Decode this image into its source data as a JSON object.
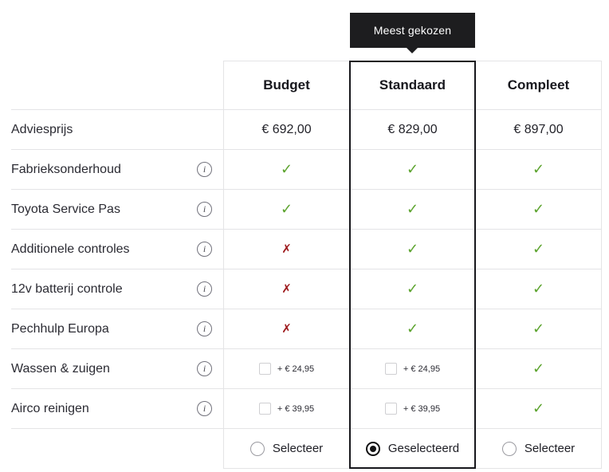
{
  "badge": {
    "label": "Meest gekozen"
  },
  "header": {
    "columns": [
      "Budget",
      "Standaard",
      "Compleet"
    ]
  },
  "icons": {
    "info": "i"
  },
  "colors": {
    "check": "#5ba32d",
    "cross": "#9e1b1e",
    "badge_bg": "#1d1d1f",
    "highlight_border": "#17171c"
  },
  "rows": {
    "price": {
      "label": "Adviesprijs",
      "values": [
        "€ 692,00",
        "€ 829,00",
        "€ 897,00"
      ]
    },
    "features": [
      {
        "label": "Fabrieksonderhoud",
        "cells": [
          {
            "glyph": "✓",
            "type": "check"
          },
          {
            "glyph": "✓",
            "type": "check"
          },
          {
            "glyph": "✓",
            "type": "check"
          }
        ]
      },
      {
        "label": "Toyota Service Pas",
        "cells": [
          {
            "glyph": "✓",
            "type": "check"
          },
          {
            "glyph": "✓",
            "type": "check"
          },
          {
            "glyph": "✓",
            "type": "check"
          }
        ]
      },
      {
        "label": "Additionele controles",
        "cells": [
          {
            "glyph": "✗",
            "type": "cross"
          },
          {
            "glyph": "✓",
            "type": "check"
          },
          {
            "glyph": "✓",
            "type": "check"
          }
        ]
      },
      {
        "label": "12v batterij controle",
        "cells": [
          {
            "glyph": "✗",
            "type": "cross"
          },
          {
            "glyph": "✓",
            "type": "check"
          },
          {
            "glyph": "✓",
            "type": "check"
          }
        ]
      },
      {
        "label": "Pechhulp Europa",
        "cells": [
          {
            "glyph": "✗",
            "type": "cross"
          },
          {
            "glyph": "✓",
            "type": "check"
          },
          {
            "glyph": "✓",
            "type": "check"
          }
        ]
      }
    ],
    "addons": [
      {
        "label": "Wassen & zuigen",
        "price": "+ € 24,95",
        "compleet": {
          "glyph": "✓",
          "type": "check"
        }
      },
      {
        "label": "Airco reinigen",
        "price": "+ € 39,95",
        "compleet": {
          "glyph": "✓",
          "type": "check"
        }
      }
    ],
    "selector": {
      "options": [
        {
          "label": "Selecteer",
          "state": "off"
        },
        {
          "label": "Geselecteerd",
          "state": "on"
        },
        {
          "label": "Selecteer",
          "state": "off"
        }
      ]
    }
  }
}
